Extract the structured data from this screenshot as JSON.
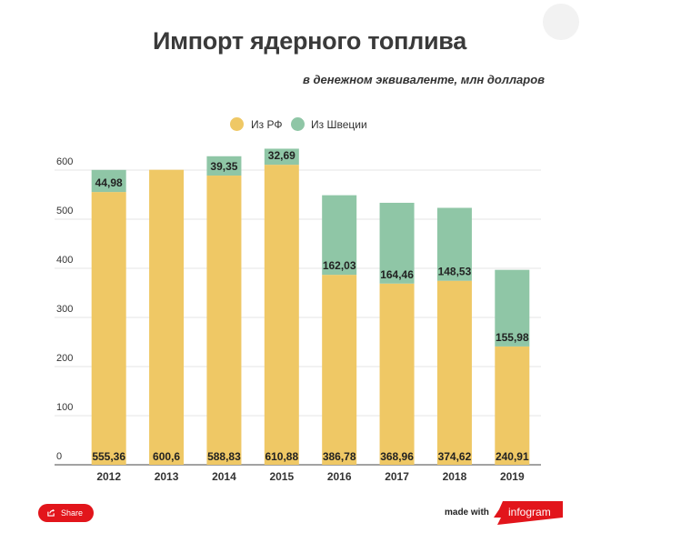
{
  "chart_data": {
    "type": "bar",
    "stacked": true,
    "title": "Импорт ядерного топлива",
    "subtitle": "в денежном эквиваленте, млн долларов",
    "categories": [
      "2012",
      "2013",
      "2014",
      "2015",
      "2016",
      "2017",
      "2018",
      "2019"
    ],
    "series": [
      {
        "name": "Из РФ",
        "color": "#efc865",
        "values": [
          555.36,
          600.6,
          588.83,
          610.88,
          386.78,
          368.96,
          374.62,
          240.91
        ],
        "labels": [
          "555,36",
          "600,6",
          "588,83",
          "610,88",
          "386,78",
          "368,96",
          "374,62",
          "240,91"
        ]
      },
      {
        "name": "Из Швеции",
        "color": "#8fc6a6",
        "values": [
          44.98,
          null,
          39.35,
          32.69,
          162.03,
          164.46,
          148.53,
          155.98
        ],
        "labels": [
          "44,98",
          "",
          "39,35",
          "32,69",
          "162,03",
          "164,46",
          "148,53",
          "155,98"
        ]
      }
    ],
    "yticks": [
      "0",
      "100",
      "200",
      "300",
      "400",
      "500",
      "600"
    ],
    "ylim": [
      0,
      600
    ],
    "grid": true,
    "legend": "top"
  },
  "footer": {
    "share_label": "Share",
    "share_icon": "share-icon",
    "made_with": "made with",
    "brand": "infogram",
    "brand_color": "#e2151b"
  }
}
